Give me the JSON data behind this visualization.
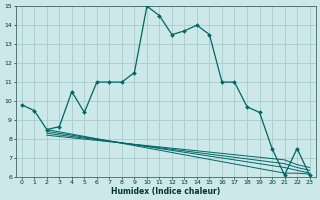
{
  "bg_color": "#cce8e8",
  "grid_color": "#aacccc",
  "line_color": "#006666",
  "xlabel": "Humidex (Indice chaleur)",
  "ylim": [
    6,
    15
  ],
  "xlim": [
    -0.5,
    23.5
  ],
  "yticks": [
    6,
    7,
    8,
    9,
    10,
    11,
    12,
    13,
    14,
    15
  ],
  "xticks": [
    0,
    1,
    2,
    3,
    4,
    5,
    6,
    7,
    8,
    9,
    10,
    11,
    12,
    13,
    14,
    15,
    16,
    17,
    18,
    19,
    20,
    21,
    22,
    23
  ],
  "main_x": [
    0,
    1,
    2,
    3,
    4,
    5,
    6,
    7,
    8,
    9,
    10,
    11,
    12,
    13,
    14,
    15,
    16,
    17,
    18,
    19,
    20,
    21,
    22,
    23
  ],
  "main_y": [
    9.8,
    9.5,
    8.5,
    8.65,
    10.5,
    9.4,
    11.0,
    11.0,
    11.0,
    11.5,
    15.0,
    14.5,
    13.5,
    13.7,
    14.0,
    13.5,
    11.0,
    11.0,
    9.7,
    9.4,
    7.5,
    6.1,
    7.5,
    6.1
  ],
  "line1_x": [
    2,
    21,
    22,
    23
  ],
  "line1_y": [
    8.5,
    6.2,
    6.2,
    6.15
  ],
  "line2_x": [
    2,
    21,
    22,
    23
  ],
  "line2_y": [
    8.4,
    6.5,
    6.35,
    6.2
  ],
  "line3_x": [
    2,
    21,
    22,
    23
  ],
  "line3_y": [
    8.3,
    6.7,
    6.5,
    6.35
  ],
  "line4_x": [
    2,
    21,
    22,
    23
  ],
  "line4_y": [
    8.2,
    6.9,
    6.65,
    6.5
  ]
}
